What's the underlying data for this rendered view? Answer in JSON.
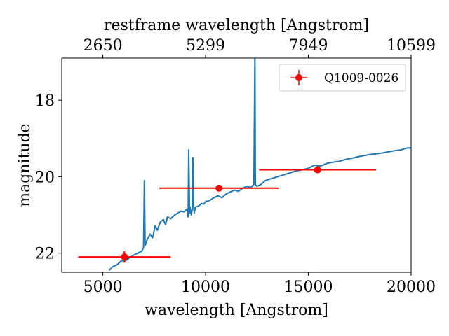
{
  "chart_data": {
    "type": "line",
    "xlabel": "wavelength [Angstrom]",
    "ylabel": "magnitude",
    "top_xlabel": "restframe wavelength [Angstrom]",
    "xlim": [
      3000,
      20000
    ],
    "ylim": [
      22.5,
      16.9
    ],
    "y_inverted": true,
    "x_ticks": [
      5000,
      10000,
      15000,
      20000
    ],
    "x_tick_labels": [
      "5000",
      "10000",
      "15000",
      "20000"
    ],
    "y_ticks": [
      18,
      20,
      22
    ],
    "y_tick_labels": [
      "18",
      "20",
      "22"
    ],
    "top_ticks_bottom_x": [
      5000,
      10000,
      15000,
      20000
    ],
    "top_tick_labels": [
      "2650",
      "5299",
      "7949",
      "10599"
    ],
    "grid": false,
    "legend_position": "top-right",
    "spectrum": {
      "color": "#1f77b4",
      "x": [
        5300,
        5500,
        5700,
        5900,
        6100,
        6300,
        6500,
        6700,
        6900,
        6980,
        7020,
        7060,
        7150,
        7300,
        7420,
        7550,
        7650,
        7800,
        7950,
        8050,
        8150,
        8300,
        8500,
        8650,
        8800,
        8950,
        9100,
        9150,
        9180,
        9220,
        9250,
        9300,
        9350,
        9380,
        9420,
        9450,
        9500,
        9600,
        9700,
        9800,
        9900,
        10000,
        10200,
        10400,
        10600,
        10800,
        11000,
        11200,
        11400,
        11600,
        11800,
        12000,
        12200,
        12350,
        12400,
        12420,
        12450,
        12500,
        12700,
        12900,
        13200,
        13500,
        13800,
        14100,
        14400,
        14700,
        15000,
        15300,
        15600,
        15900,
        16200,
        16500,
        16800,
        17100,
        17400,
        17700,
        18000,
        18300,
        18600,
        18900,
        19200,
        19500,
        19800,
        20000
      ],
      "y": [
        22.45,
        22.35,
        22.3,
        22.2,
        22.2,
        22.12,
        22.05,
        22.0,
        21.95,
        21.85,
        20.1,
        21.8,
        21.65,
        21.5,
        21.6,
        21.28,
        21.4,
        21.18,
        21.12,
        21.25,
        21.05,
        21.1,
        21.0,
        20.95,
        20.9,
        20.92,
        20.85,
        21.05,
        19.3,
        20.95,
        20.8,
        21.0,
        20.85,
        19.5,
        20.8,
        20.95,
        20.8,
        20.78,
        20.75,
        20.7,
        20.72,
        20.65,
        20.62,
        20.55,
        20.5,
        20.55,
        20.45,
        20.4,
        20.35,
        20.38,
        20.3,
        20.25,
        20.28,
        20.2,
        16.75,
        20.2,
        20.22,
        20.25,
        20.2,
        20.1,
        20.05,
        20.0,
        19.95,
        19.9,
        19.85,
        19.82,
        19.78,
        19.7,
        19.72,
        19.65,
        19.62,
        19.6,
        19.55,
        19.52,
        19.48,
        19.45,
        19.42,
        19.4,
        19.38,
        19.35,
        19.32,
        19.3,
        19.25,
        19.25
      ]
    },
    "series": [
      {
        "name": "Q1009-0026",
        "color": "#ff0000",
        "points": [
          {
            "x": 6050,
            "y": 22.1,
            "xerr": 2250,
            "yerr": 0.15
          },
          {
            "x": 10650,
            "y": 20.3,
            "xerr": 2900,
            "yerr": 0.05
          },
          {
            "x": 15450,
            "y": 19.82,
            "xerr": 2850,
            "yerr": 0.05
          }
        ]
      }
    ]
  }
}
